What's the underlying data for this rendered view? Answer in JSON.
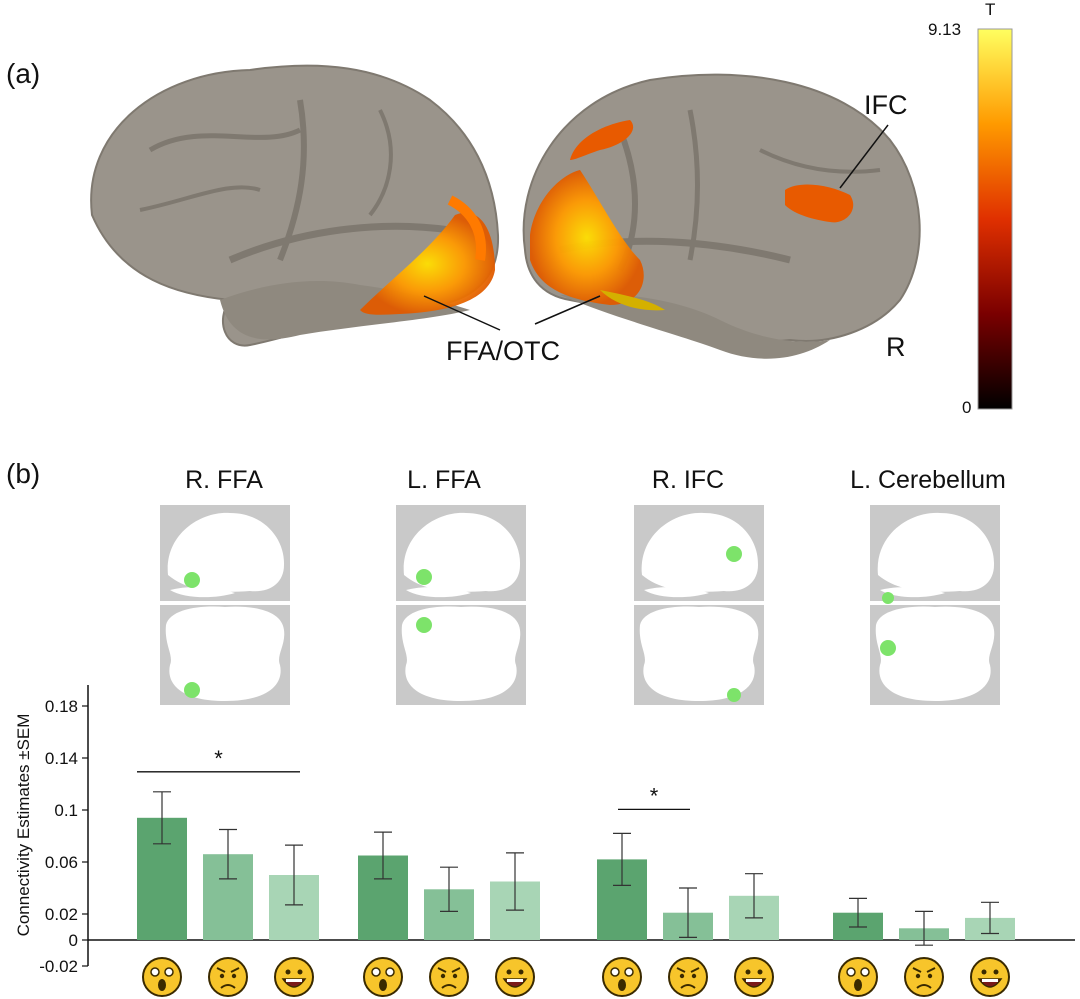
{
  "panel_a": {
    "label": "(a)",
    "labels": {
      "ffa_otc": "FFA/OTC",
      "ifc": "IFC",
      "hemisphere": "R"
    },
    "colorbar": {
      "title": "T",
      "max_label": "9.13",
      "min_label": "0"
    }
  },
  "panel_b": {
    "label": "(b)",
    "rois": [
      {
        "name": "R. FFA"
      },
      {
        "name": "L. FFA"
      },
      {
        "name": "R. IFC"
      },
      {
        "name": "L. Cerebellum"
      }
    ]
  },
  "chart_data": {
    "type": "bar",
    "ylabel": "Connectivity Estimates ±SEM",
    "ylim": [
      -0.02,
      0.19
    ],
    "yticks": [
      -0.02,
      0,
      0.02,
      0.06,
      0.1,
      0.14,
      0.18
    ],
    "ytick_labels": [
      "-0.02",
      "0",
      "0.02",
      "0.06",
      "0.1",
      "0.14",
      "0.18"
    ],
    "groups": [
      "R. FFA",
      "L. FFA",
      "R. IFC",
      "L. Cerebellum"
    ],
    "conditions": [
      "surprised",
      "angry",
      "happy"
    ],
    "values": [
      [
        0.094,
        0.066,
        0.05
      ],
      [
        0.065,
        0.039,
        0.045
      ],
      [
        0.062,
        0.021,
        0.034
      ],
      [
        0.021,
        0.009,
        0.017
      ]
    ],
    "errors": [
      [
        0.02,
        0.019,
        0.023
      ],
      [
        0.018,
        0.017,
        0.022
      ],
      [
        0.02,
        0.019,
        0.017
      ],
      [
        0.011,
        0.013,
        0.012
      ]
    ],
    "colors": [
      "#5ba46f",
      "#85c097",
      "#a8d5b5"
    ],
    "significance": [
      {
        "group": 0,
        "from": 0,
        "to": 2,
        "label": "*"
      },
      {
        "group": 2,
        "from": 0,
        "to": 1,
        "label": "*"
      }
    ]
  }
}
